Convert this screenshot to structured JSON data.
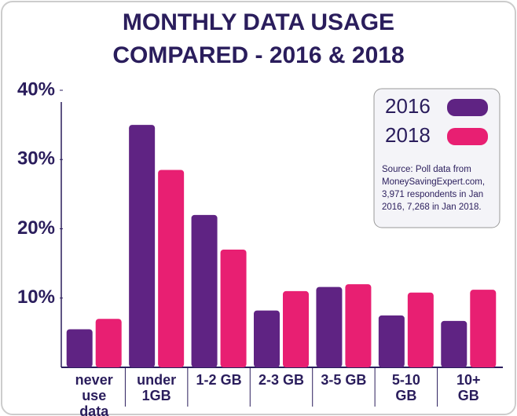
{
  "chart_data": {
    "type": "bar",
    "title": [
      "MONTHLY DATA USAGE",
      "COMPARED - 2016 & 2018"
    ],
    "categories": [
      "never use data",
      "under 1GB",
      "1-2 GB",
      "2-3 GB",
      "3-5 GB",
      "5-10 GB",
      "10+ GB"
    ],
    "series": [
      {
        "name": "2016",
        "color": "#5f2383",
        "values": [
          5.5,
          35,
          22,
          8.2,
          11.6,
          7.5,
          6.7
        ]
      },
      {
        "name": "2018",
        "color": "#e81f72",
        "values": [
          7,
          28.5,
          17,
          11,
          12,
          10.8,
          11.2
        ]
      }
    ],
    "ylim": [
      0,
      40
    ],
    "yticks": [
      {
        "value": 10,
        "label": "10%"
      },
      {
        "value": 20,
        "label": "20%"
      },
      {
        "value": 30,
        "label": "30%"
      },
      {
        "value": 40,
        "label": "40%"
      }
    ],
    "legend": "top-right",
    "source": "Source: Poll data from MoneySavingExpert.com, 3,971 respondents in Jan 2016, 7,268 in Jan 2018."
  }
}
